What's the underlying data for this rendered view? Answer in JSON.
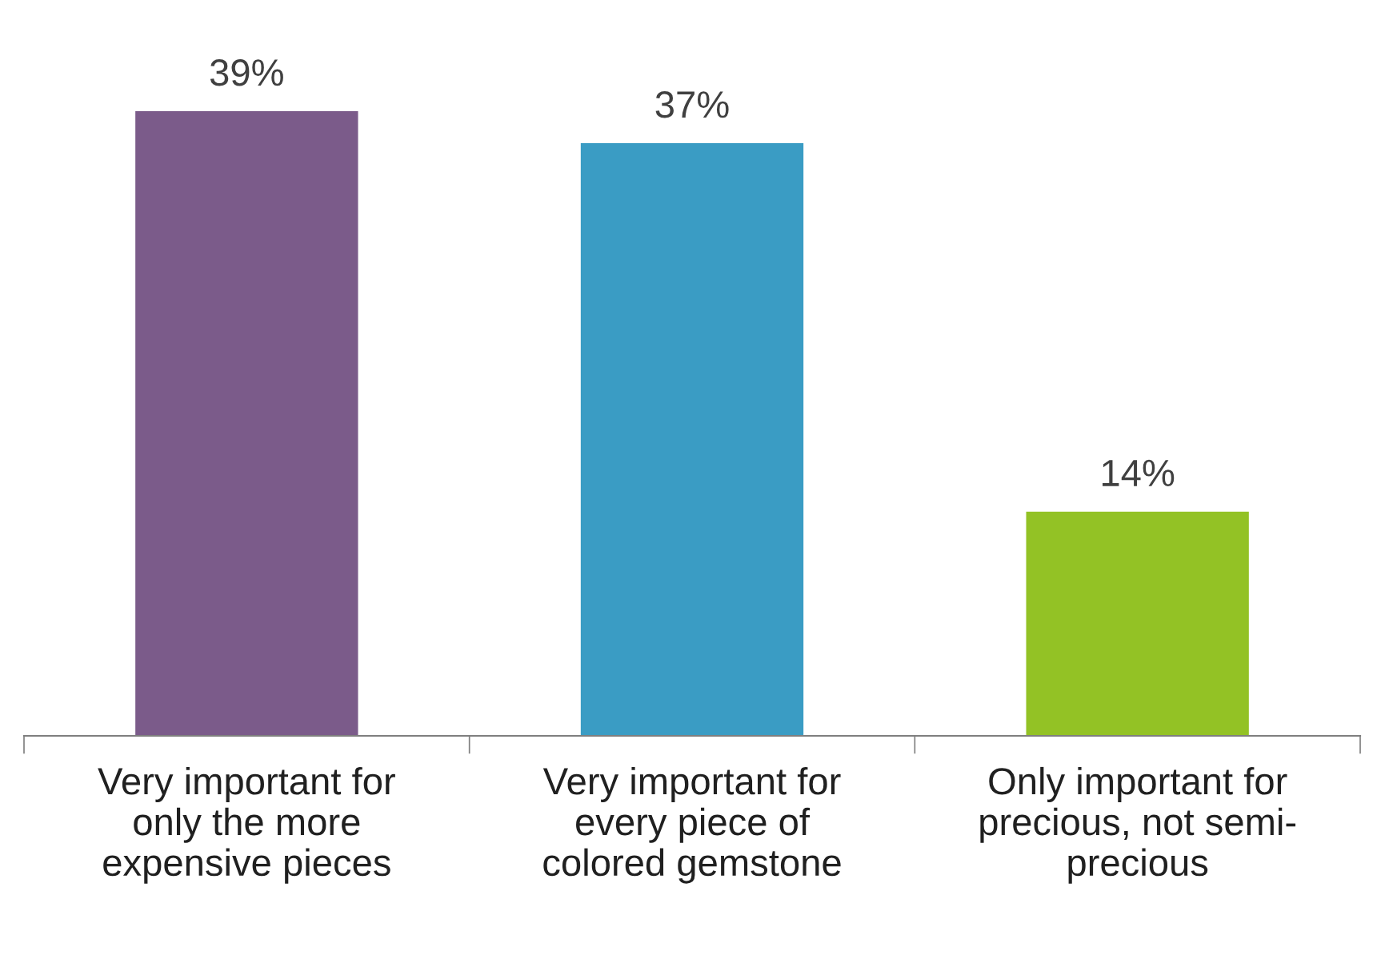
{
  "chart_data": {
    "type": "bar",
    "categories": [
      "Very important for\nonly the more\nexpensive pieces",
      "Very important for\nevery piece of\ncolored gemstone",
      "Only important for\nprecious, not semi-\nprecious"
    ],
    "values": [
      39,
      37,
      14
    ],
    "colors": [
      "#7b5b8a",
      "#3a9cc4",
      "#93c225"
    ],
    "value_labels": [
      "39%",
      "37%",
      "14%"
    ],
    "tick_labels": "x",
    "grid": false,
    "legend": false
  }
}
